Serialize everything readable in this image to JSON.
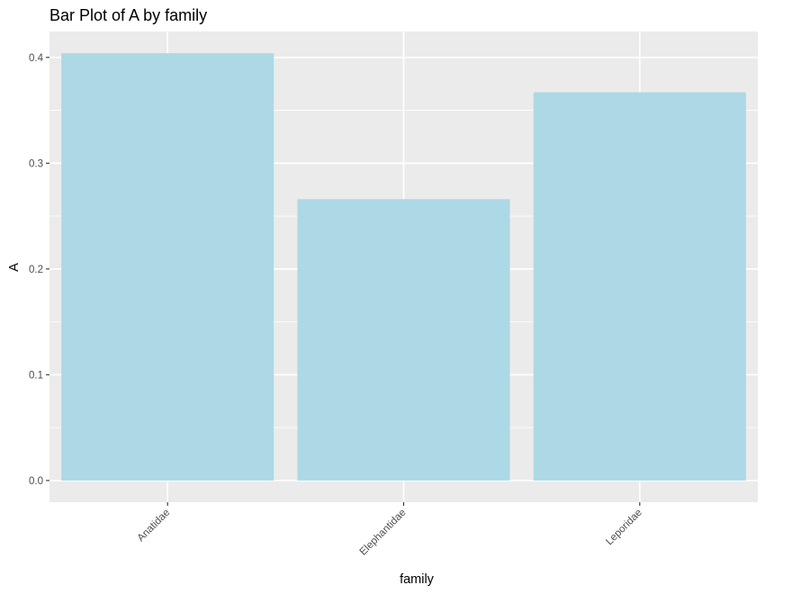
{
  "chart_data": {
    "type": "bar",
    "title": "Bar Plot of A by family",
    "xlabel": "family",
    "ylabel": "A",
    "categories": [
      "Anatidae",
      "Elephantidae",
      "Leporidae"
    ],
    "values": [
      0.404,
      0.266,
      0.367
    ],
    "ylim": [
      -0.0205,
      0.4245
    ],
    "yticks": [
      0.0,
      0.1,
      0.2,
      0.3,
      0.4
    ],
    "ytick_labels": [
      "0.0",
      "0.1",
      "0.2",
      "0.3",
      "0.4"
    ],
    "grid": true,
    "legend": "none",
    "x_tick_label_rotation": -45
  },
  "colors": {
    "bar_fill": "#add8e6",
    "panel_background": "#ebebeb",
    "grid_line": "#ffffff",
    "tick_mark": "#333333",
    "tick_label": "#4d4d4d",
    "text": "#000000"
  }
}
